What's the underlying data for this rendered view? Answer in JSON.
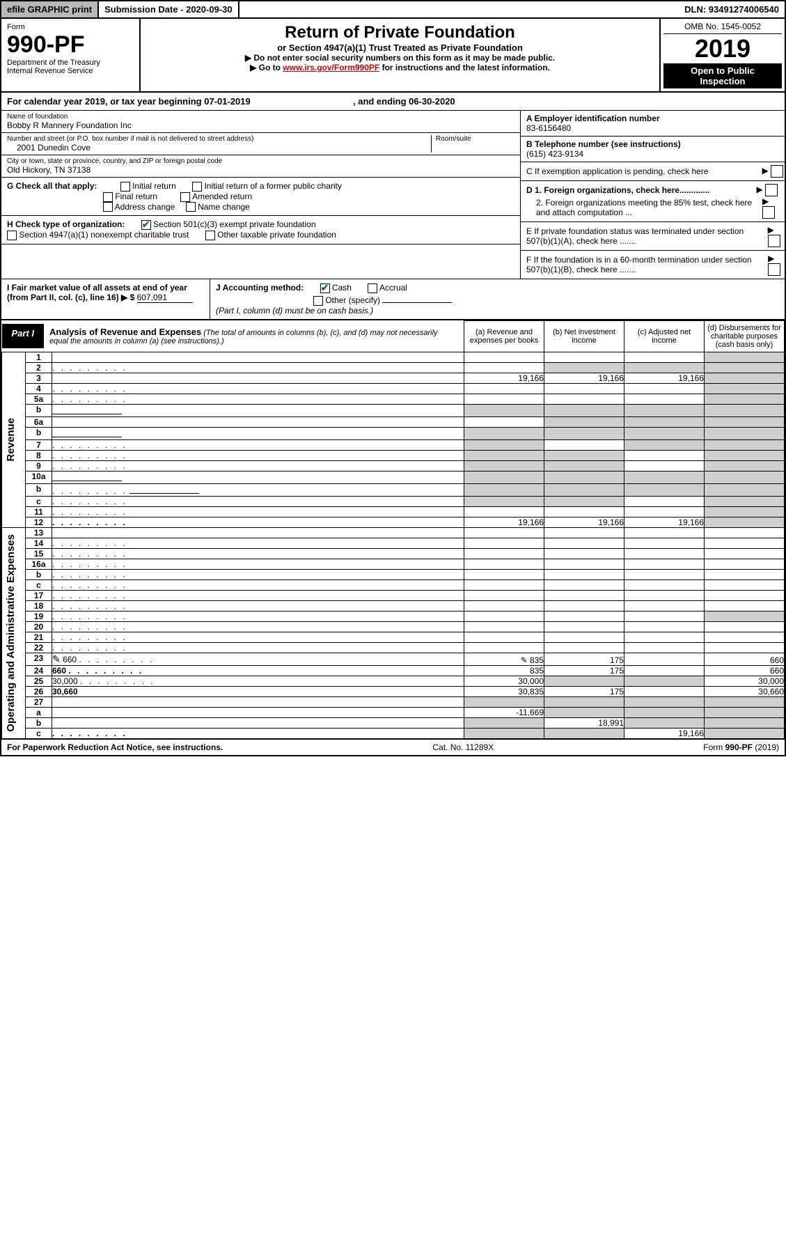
{
  "top": {
    "efile": "efile GRAPHIC print",
    "submission_label": "Submission Date - 2020-09-30",
    "dln": "DLN: 93491274006540"
  },
  "header": {
    "form_label": "Form",
    "form_number": "990-PF",
    "dept1": "Department of the Treasury",
    "dept2": "Internal Revenue Service",
    "title": "Return of Private Foundation",
    "subtitle": "or Section 4947(a)(1) Trust Treated as Private Foundation",
    "instr1": "▶ Do not enter social security numbers on this form as it may be made public.",
    "instr2_pre": "▶ Go to ",
    "instr2_link": "www.irs.gov/Form990PF",
    "instr2_post": " for instructions and the latest information.",
    "omb": "OMB No. 1545-0052",
    "year": "2019",
    "open": "Open to Public Inspection"
  },
  "calendar": {
    "pre": "For calendar year 2019, or tax year beginning ",
    "begin": "07-01-2019",
    "mid": ", and ending ",
    "end": "06-30-2020"
  },
  "foundation": {
    "name_label": "Name of foundation",
    "name": "Bobby R Mannery Foundation Inc",
    "addr_label": "Number and street (or P.O. box number if mail is not delivered to street address)",
    "room_label": "Room/suite",
    "addr": "2001 Dunedin Cove",
    "city_label": "City or town, state or province, country, and ZIP or foreign postal code",
    "city": "Old Hickory, TN  37138",
    "ein_label": "A Employer identification number",
    "ein": "83-6156480",
    "phone_label": "B Telephone number (see instructions)",
    "phone": "(615) 423-9134",
    "c_label": "C  If exemption application is pending, check here",
    "d1": "D 1. Foreign organizations, check here.............",
    "d2": "2. Foreign organizations meeting the 85% test, check here and attach computation ...",
    "e_label": "E  If private foundation status was terminated under section 507(b)(1)(A), check here .......",
    "f_label": "F  If the foundation is in a 60-month termination under section 507(b)(1)(B), check here .......",
    "g_label": "G Check all that apply:",
    "g_opts": [
      "Initial return",
      "Initial return of a former public charity",
      "Final return",
      "Amended return",
      "Address change",
      "Name change"
    ],
    "h_label": "H Check type of organization:",
    "h_opts": [
      "Section 501(c)(3) exempt private foundation",
      "Section 4947(a)(1) nonexempt charitable trust",
      "Other taxable private foundation"
    ],
    "i_label": "I Fair market value of all assets at end of year (from Part II, col. (c), line 16) ▶ $",
    "i_val": "607,091",
    "j_label": "J Accounting method:",
    "j_cash": "Cash",
    "j_accrual": "Accrual",
    "j_other": "Other (specify)",
    "j_note": "(Part I, column (d) must be on cash basis.)"
  },
  "part1": {
    "label": "Part I",
    "title": "Analysis of Revenue and Expenses",
    "desc": " (The total of amounts in columns (b), (c), and (d) may not necessarily equal the amounts in column (a) (see instructions).)",
    "col_a": "(a) Revenue and expenses per books",
    "col_b": "(b) Net investment income",
    "col_c": "(c) Adjusted net income",
    "col_d": "(d) Disbursements for charitable purposes (cash basis only)",
    "side_rev": "Revenue",
    "side_exp": "Operating and Administrative Expenses"
  },
  "rows": [
    {
      "n": "1",
      "d": "",
      "a": "",
      "b": "",
      "c": "",
      "dg": true
    },
    {
      "n": "2",
      "d": "",
      "a": "",
      "b": "",
      "c": "",
      "bg": true,
      "cg": true,
      "dg": true,
      "dots": true,
      "bold_not": true
    },
    {
      "n": "3",
      "d": "",
      "a": "19,166",
      "b": "19,166",
      "c": "19,166",
      "dg": true
    },
    {
      "n": "4",
      "d": "",
      "a": "",
      "b": "",
      "c": "",
      "dg": true,
      "dots": true
    },
    {
      "n": "5a",
      "d": "",
      "a": "",
      "b": "",
      "c": "",
      "dg": true,
      "dots": true
    },
    {
      "n": "b",
      "d": "",
      "a": "",
      "b": "",
      "c": "",
      "ag": true,
      "bg": true,
      "cg": true,
      "dg": true,
      "input": true
    },
    {
      "n": "6a",
      "d": "",
      "a": "",
      "b": "",
      "c": "",
      "bg": true,
      "cg": true,
      "dg": true
    },
    {
      "n": "b",
      "d": "",
      "a": "",
      "b": "",
      "c": "",
      "ag": true,
      "bg": true,
      "cg": true,
      "dg": true,
      "input": true
    },
    {
      "n": "7",
      "d": "",
      "a": "",
      "b": "",
      "c": "",
      "ag": true,
      "cg": true,
      "dg": true,
      "dots": true
    },
    {
      "n": "8",
      "d": "",
      "a": "",
      "b": "",
      "c": "",
      "ag": true,
      "bg": true,
      "dg": true,
      "dots": true
    },
    {
      "n": "9",
      "d": "",
      "a": "",
      "b": "",
      "c": "",
      "ag": true,
      "bg": true,
      "dg": true,
      "dots": true
    },
    {
      "n": "10a",
      "d": "",
      "a": "",
      "b": "",
      "c": "",
      "ag": true,
      "bg": true,
      "cg": true,
      "dg": true,
      "input": true
    },
    {
      "n": "b",
      "d": "",
      "a": "",
      "b": "",
      "c": "",
      "ag": true,
      "bg": true,
      "cg": true,
      "dg": true,
      "dots": true,
      "input": true
    },
    {
      "n": "c",
      "d": "",
      "a": "",
      "b": "",
      "c": "",
      "ag": true,
      "bg": true,
      "dg": true,
      "dots": true
    },
    {
      "n": "11",
      "d": "",
      "a": "",
      "b": "",
      "c": "",
      "dg": true,
      "dots": true
    },
    {
      "n": "12",
      "d": "",
      "a": "19,166",
      "b": "19,166",
      "c": "19,166",
      "dg": true,
      "bold": true,
      "dots": true
    }
  ],
  "exp_rows": [
    {
      "n": "13",
      "d": "",
      "a": "",
      "b": "",
      "c": ""
    },
    {
      "n": "14",
      "d": "",
      "a": "",
      "b": "",
      "c": "",
      "dots": true
    },
    {
      "n": "15",
      "d": "",
      "a": "",
      "b": "",
      "c": "",
      "dots": true
    },
    {
      "n": "16a",
      "d": "",
      "a": "",
      "b": "",
      "c": "",
      "dots": true
    },
    {
      "n": "b",
      "d": "",
      "a": "",
      "b": "",
      "c": "",
      "dots": true
    },
    {
      "n": "c",
      "d": "",
      "a": "",
      "b": "",
      "c": "",
      "dots": true
    },
    {
      "n": "17",
      "d": "",
      "a": "",
      "b": "",
      "c": "",
      "dots": true
    },
    {
      "n": "18",
      "d": "",
      "a": "",
      "b": "",
      "c": "",
      "dots": true
    },
    {
      "n": "19",
      "d": "",
      "a": "",
      "b": "",
      "c": "",
      "dg": true,
      "dots": true
    },
    {
      "n": "20",
      "d": "",
      "a": "",
      "b": "",
      "c": "",
      "dots": true
    },
    {
      "n": "21",
      "d": "",
      "a": "",
      "b": "",
      "c": "",
      "dots": true
    },
    {
      "n": "22",
      "d": "",
      "a": "",
      "b": "",
      "c": "",
      "dots": true
    },
    {
      "n": "23",
      "d": "660",
      "a": "835",
      "b": "175",
      "c": "",
      "dots": true,
      "pencil": true
    },
    {
      "n": "24",
      "d": "660",
      "a": "835",
      "b": "175",
      "c": "",
      "bold": true,
      "dots": true
    },
    {
      "n": "25",
      "d": "30,000",
      "a": "30,000",
      "b": "",
      "c": "",
      "bg": true,
      "cg": true,
      "dots": true
    },
    {
      "n": "26",
      "d": "30,660",
      "a": "30,835",
      "b": "175",
      "c": "",
      "bold": true
    },
    {
      "n": "27",
      "d": "",
      "a": "",
      "b": "",
      "c": "",
      "ag": true,
      "bg": true,
      "cg": true,
      "dg": true
    },
    {
      "n": "a",
      "d": "",
      "a": "-11,669",
      "b": "",
      "c": "",
      "bg": true,
      "cg": true,
      "dg": true,
      "bold": true
    },
    {
      "n": "b",
      "d": "",
      "a": "",
      "b": "18,991",
      "c": "",
      "ag": true,
      "cg": true,
      "dg": true,
      "bold": true
    },
    {
      "n": "c",
      "d": "",
      "a": "",
      "b": "",
      "c": "19,166",
      "ag": true,
      "bg": true,
      "dg": true,
      "bold": true,
      "dots": true
    }
  ],
  "footer": {
    "left": "For Paperwork Reduction Act Notice, see instructions.",
    "mid": "Cat. No. 11289X",
    "right": "Form 990-PF (2019)"
  },
  "colors": {
    "link": "#0066cc",
    "link_red": "#cc0000",
    "grey": "#cfcfcf",
    "check_green": "#0a7a3a"
  }
}
